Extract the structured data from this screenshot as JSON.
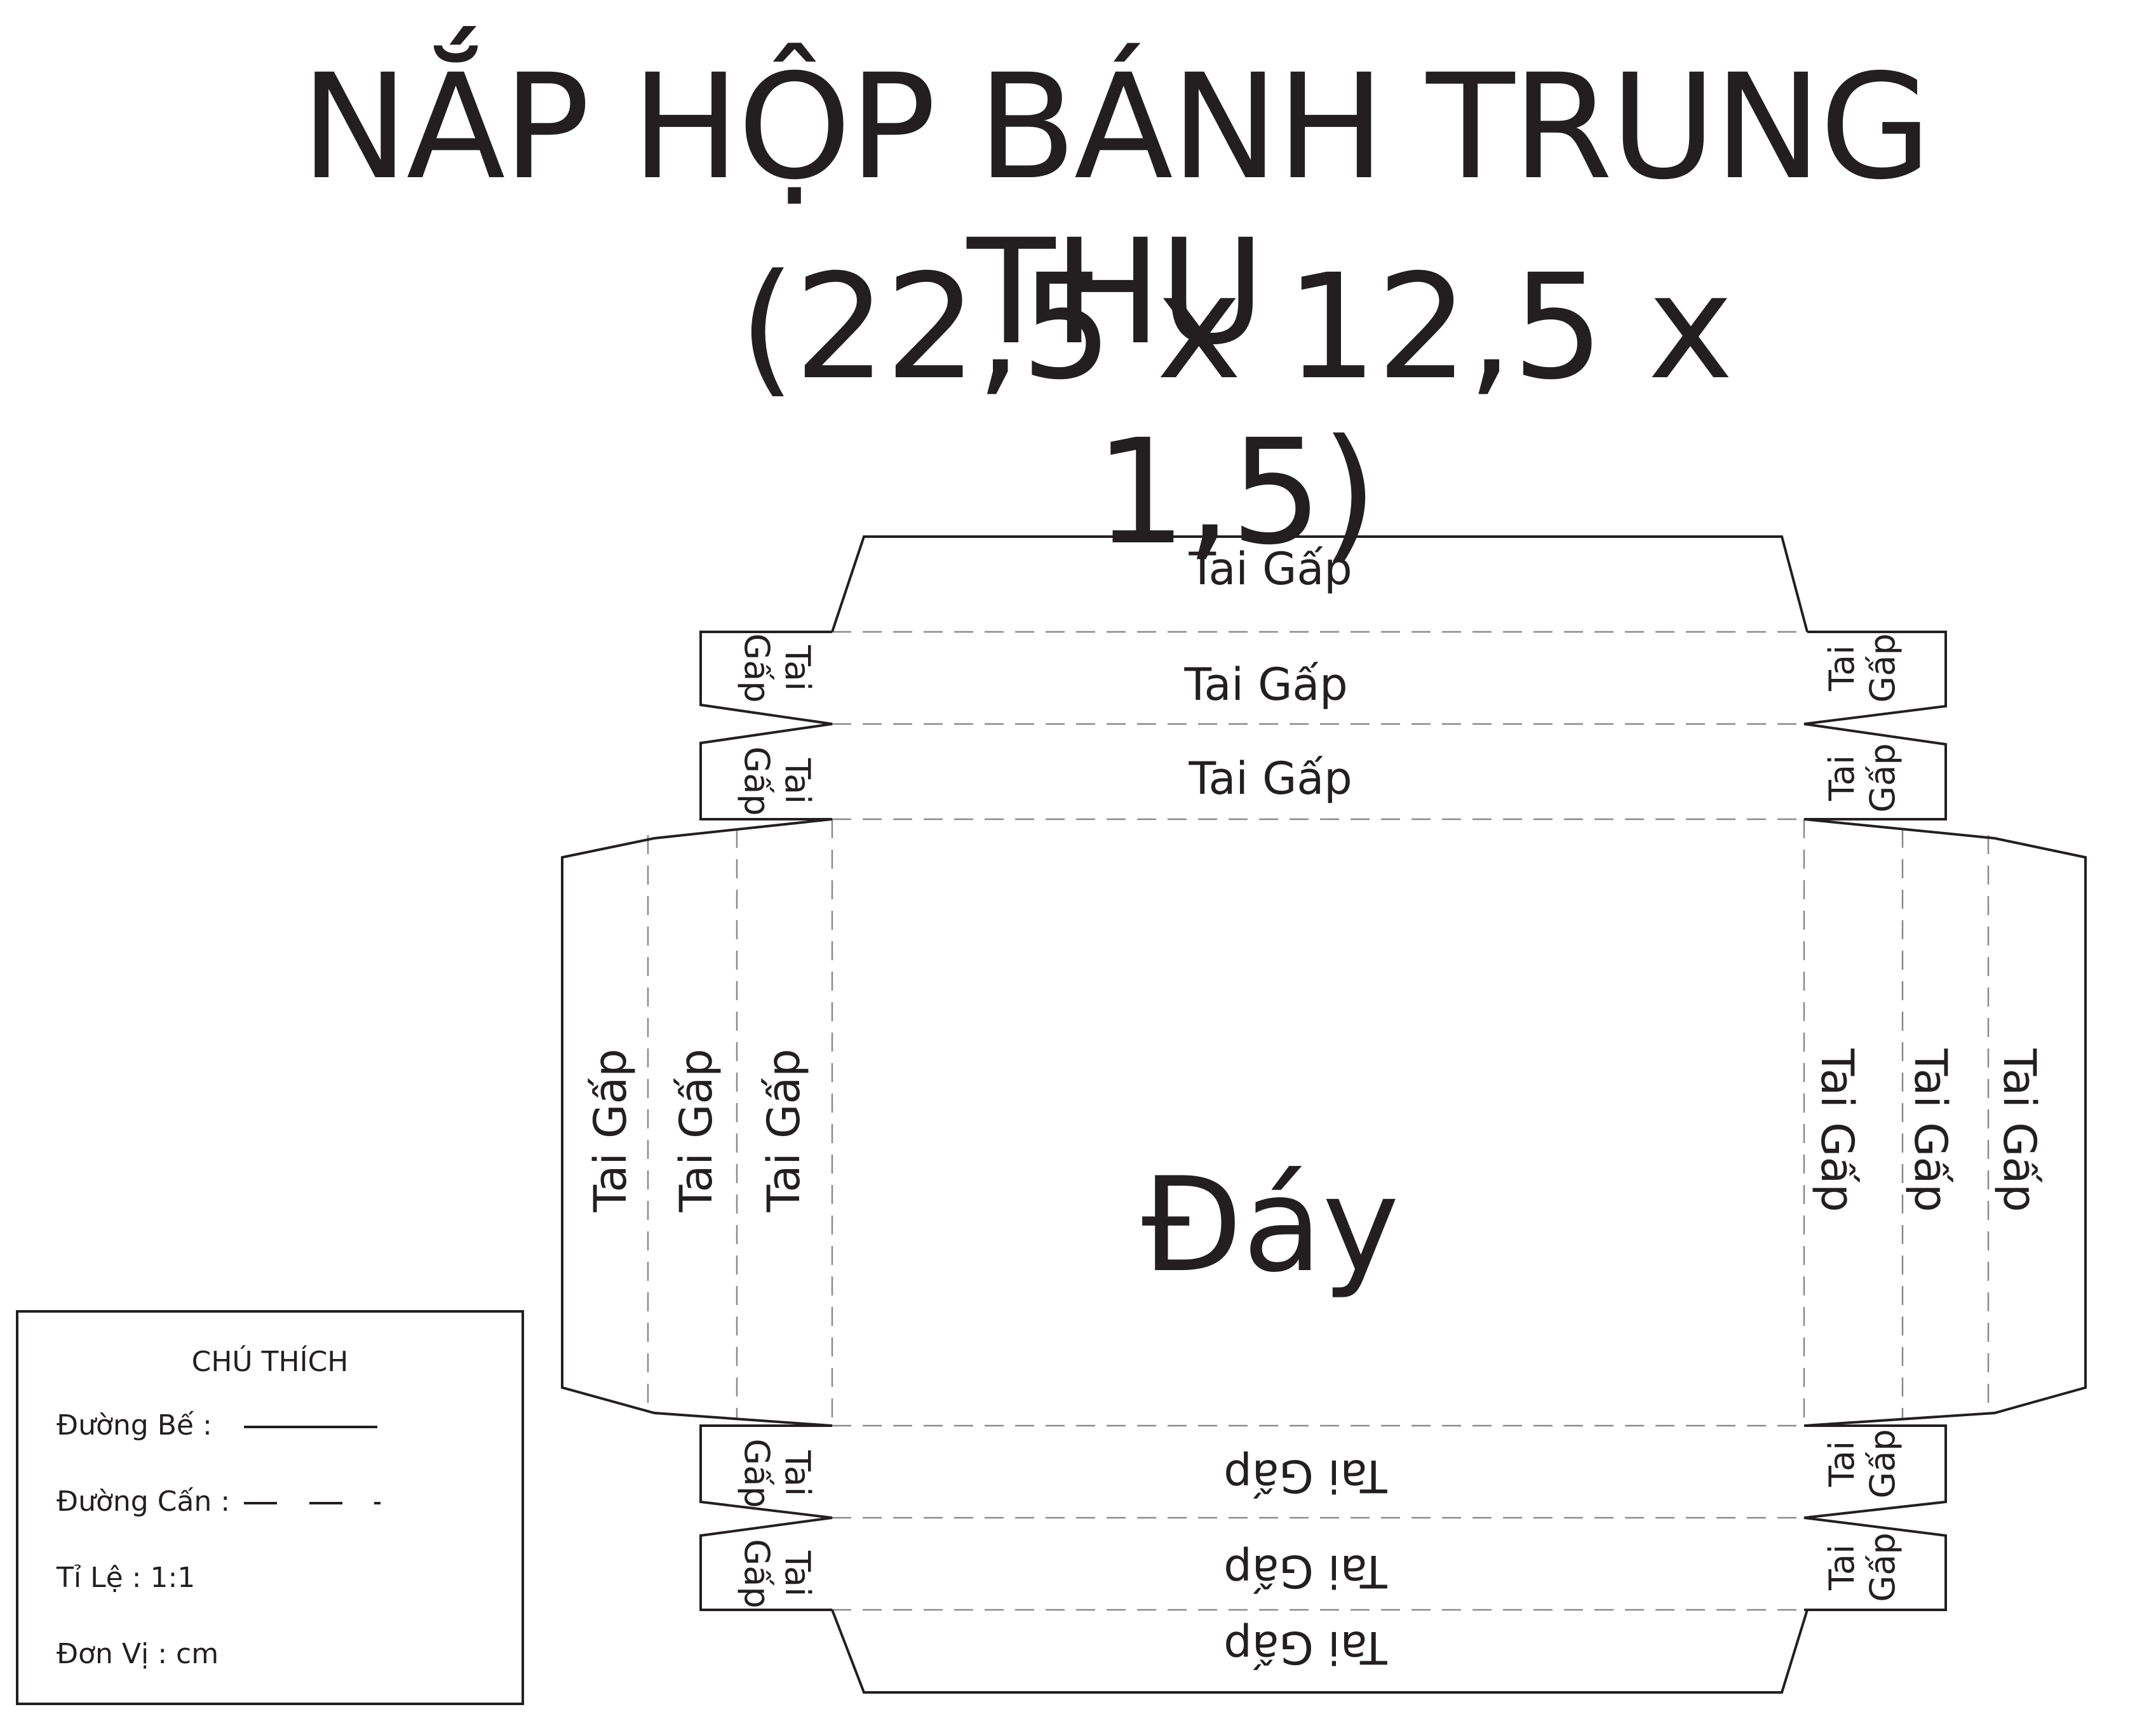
{
  "title": {
    "line1": "NẮP HỘP BÁNH TRUNG THU",
    "line2": "(22,5 x 12,5 x 1,5)"
  },
  "diagram": {
    "center_label": "Đáy",
    "flap_label": "Tai Gấp",
    "corner_flap_word1": "Tai",
    "corner_flap_word2": "Gấp"
  },
  "legend": {
    "title": "CHÚ THÍCH",
    "cut_line": "Đường Bế :",
    "fold_line": "Đường Cấn :",
    "scale": "Tỉ Lệ : 1:1",
    "unit": "Đơn Vị : cm"
  },
  "colors": {
    "ink": "#231f20",
    "fold": "#8a8a8a"
  }
}
